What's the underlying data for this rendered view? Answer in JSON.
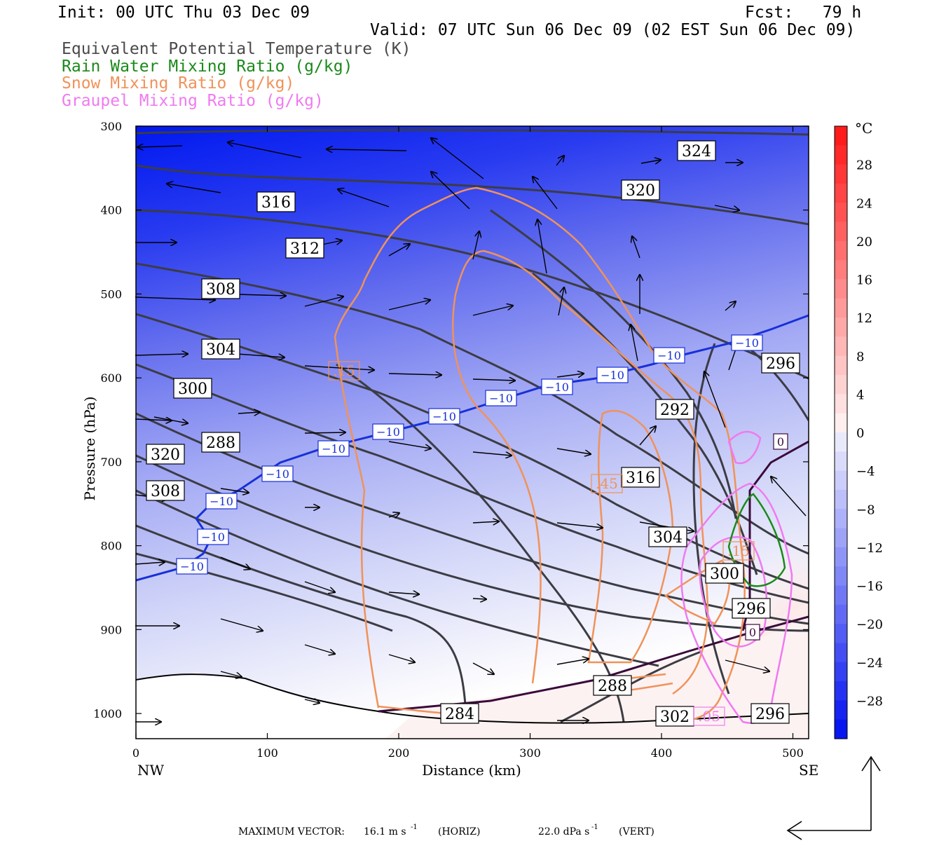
{
  "header": {
    "init": "Init: 00 UTC Thu 03 Dec 09",
    "fcst": "Fcst:   79 h",
    "valid": "Valid: 07 UTC Sun 06 Dec 09 (02 EST Sun 06 Dec 09)"
  },
  "legend": [
    {
      "label": "Equivalent Potential Temperature (K)",
      "color": "#4a4a4a"
    },
    {
      "label": "Rain Water Mixing Ratio (g/kg)",
      "color": "#1a8a1a"
    },
    {
      "label": "Snow Mixing Ratio (g/kg)",
      "color": "#f0925a"
    },
    {
      "label": "Graupel Mixing Ratio (g/kg)",
      "color": "#f07af0"
    }
  ],
  "footer": {
    "label": "MAXIMUM VECTOR:",
    "horiz": "16.1 m s",
    "horiz_unit": "(HORIZ)",
    "vert": "22.0 dPa s",
    "vert_unit": "(VERT)",
    "exp": "-1"
  },
  "chart_data": {
    "type": "contour",
    "xlabel": "Distance (km)",
    "ylabel": "Pressure (hPa)",
    "xlim": [
      0,
      512
    ],
    "ylim": [
      1030,
      300
    ],
    "x_ticks": [
      0,
      100,
      200,
      300,
      400,
      500
    ],
    "y_ticks": [
      300,
      400,
      500,
      600,
      700,
      800,
      900,
      1000
    ],
    "x_left_label": "NW",
    "x_right_label": "SE",
    "colorbar": {
      "unit": "°C",
      "labels": [
        28,
        24,
        20,
        16,
        12,
        8,
        4,
        0,
        -4,
        -8,
        -12,
        -16,
        -20,
        -24,
        -28
      ]
    },
    "theta_e_labels": [
      "324",
      "320",
      "316",
      "312",
      "308",
      "304",
      "300",
      "296",
      "292",
      "288",
      "320",
      "316",
      "308",
      "304",
      "300",
      "296",
      "288",
      "284",
      "302",
      "296"
    ],
    "temp_labels": [
      "-10",
      "-10",
      "-10",
      "-10",
      "-10",
      "-10",
      "-10",
      "-10",
      "-10",
      "-10",
      "-10",
      "-10",
      "0",
      "0"
    ],
    "snow_labels": [
      ".15",
      ".45",
      ".15",
      ".05"
    ]
  }
}
